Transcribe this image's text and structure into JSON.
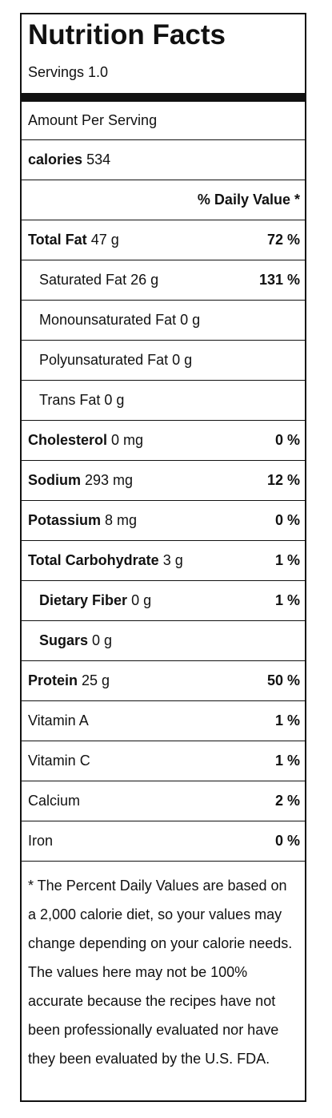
{
  "label": {
    "title": "Nutrition Facts",
    "servings": "Servings 1.0",
    "amount_per_serving": "Amount Per Serving",
    "calories": {
      "name": "calories",
      "value": "534"
    },
    "daily_value_header": "% Daily Value *",
    "nutrients": {
      "total_fat": {
        "name": "Total Fat",
        "amount": "47 g",
        "pct": "72 %"
      },
      "saturated_fat": {
        "name": "Saturated Fat 26 g",
        "pct": "131 %"
      },
      "monounsaturated_fat": {
        "name": "Monounsaturated Fat 0 g"
      },
      "polyunsaturated_fat": {
        "name": "Polyunsaturated Fat 0 g"
      },
      "trans_fat": {
        "name": "Trans Fat 0 g"
      },
      "cholesterol": {
        "name": "Cholesterol",
        "amount": "0 mg",
        "pct": "0 %"
      },
      "sodium": {
        "name": "Sodium",
        "amount": "293 mg",
        "pct": "12 %"
      },
      "potassium": {
        "name": "Potassium",
        "amount": "8 mg",
        "pct": "0 %"
      },
      "total_carbohydrate": {
        "name": "Total Carbohydrate",
        "amount": "3 g",
        "pct": "1 %"
      },
      "dietary_fiber": {
        "name": "Dietary Fiber",
        "amount": "0 g",
        "pct": "1 %"
      },
      "sugars": {
        "name": "Sugars",
        "amount": "0 g"
      },
      "protein": {
        "name": "Protein",
        "amount": "25 g",
        "pct": "50 %"
      }
    },
    "vitamins": {
      "vitamin_a": {
        "name": "Vitamin A",
        "pct": "1 %"
      },
      "vitamin_c": {
        "name": "Vitamin C",
        "pct": "1 %"
      },
      "calcium": {
        "name": "Calcium",
        "pct": "2 %"
      },
      "iron": {
        "name": "Iron",
        "pct": "0 %"
      }
    },
    "footnote": "* The Percent Daily Values are based on a 2,000 calorie diet, so your values may change depending on your calorie needs. The values here may not be 100% accurate because the recipes have not been professionally evaluated nor have they been evaluated by the U.S. FDA."
  },
  "colors": {
    "text": "#111111",
    "rule": "#111111",
    "background": "#ffffff"
  }
}
